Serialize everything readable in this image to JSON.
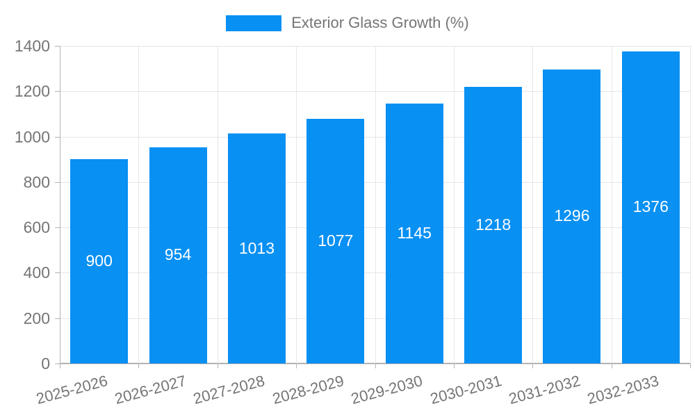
{
  "chart_data": {
    "type": "bar",
    "title": "",
    "legend_label": "Exterior Glass Growth (%)",
    "legend_position": "top",
    "categories": [
      "2025-2026",
      "2026-2027",
      "2027-2028",
      "2028-2029",
      "2029-2030",
      "2030-2031",
      "2031-2032",
      "2032-2033"
    ],
    "values": [
      900,
      954,
      1013,
      1077,
      1145,
      1218,
      1296,
      1376
    ],
    "xlabel": "",
    "ylabel": "",
    "ylim": [
      0,
      1400
    ],
    "ytick_step": 200,
    "grid": true,
    "colors": {
      "bar": "#0890f3",
      "data_label": "#ffffff",
      "axis_text": "#757575",
      "gridline": "#e6e6e6",
      "axis_line": "#b3b3b3"
    }
  }
}
